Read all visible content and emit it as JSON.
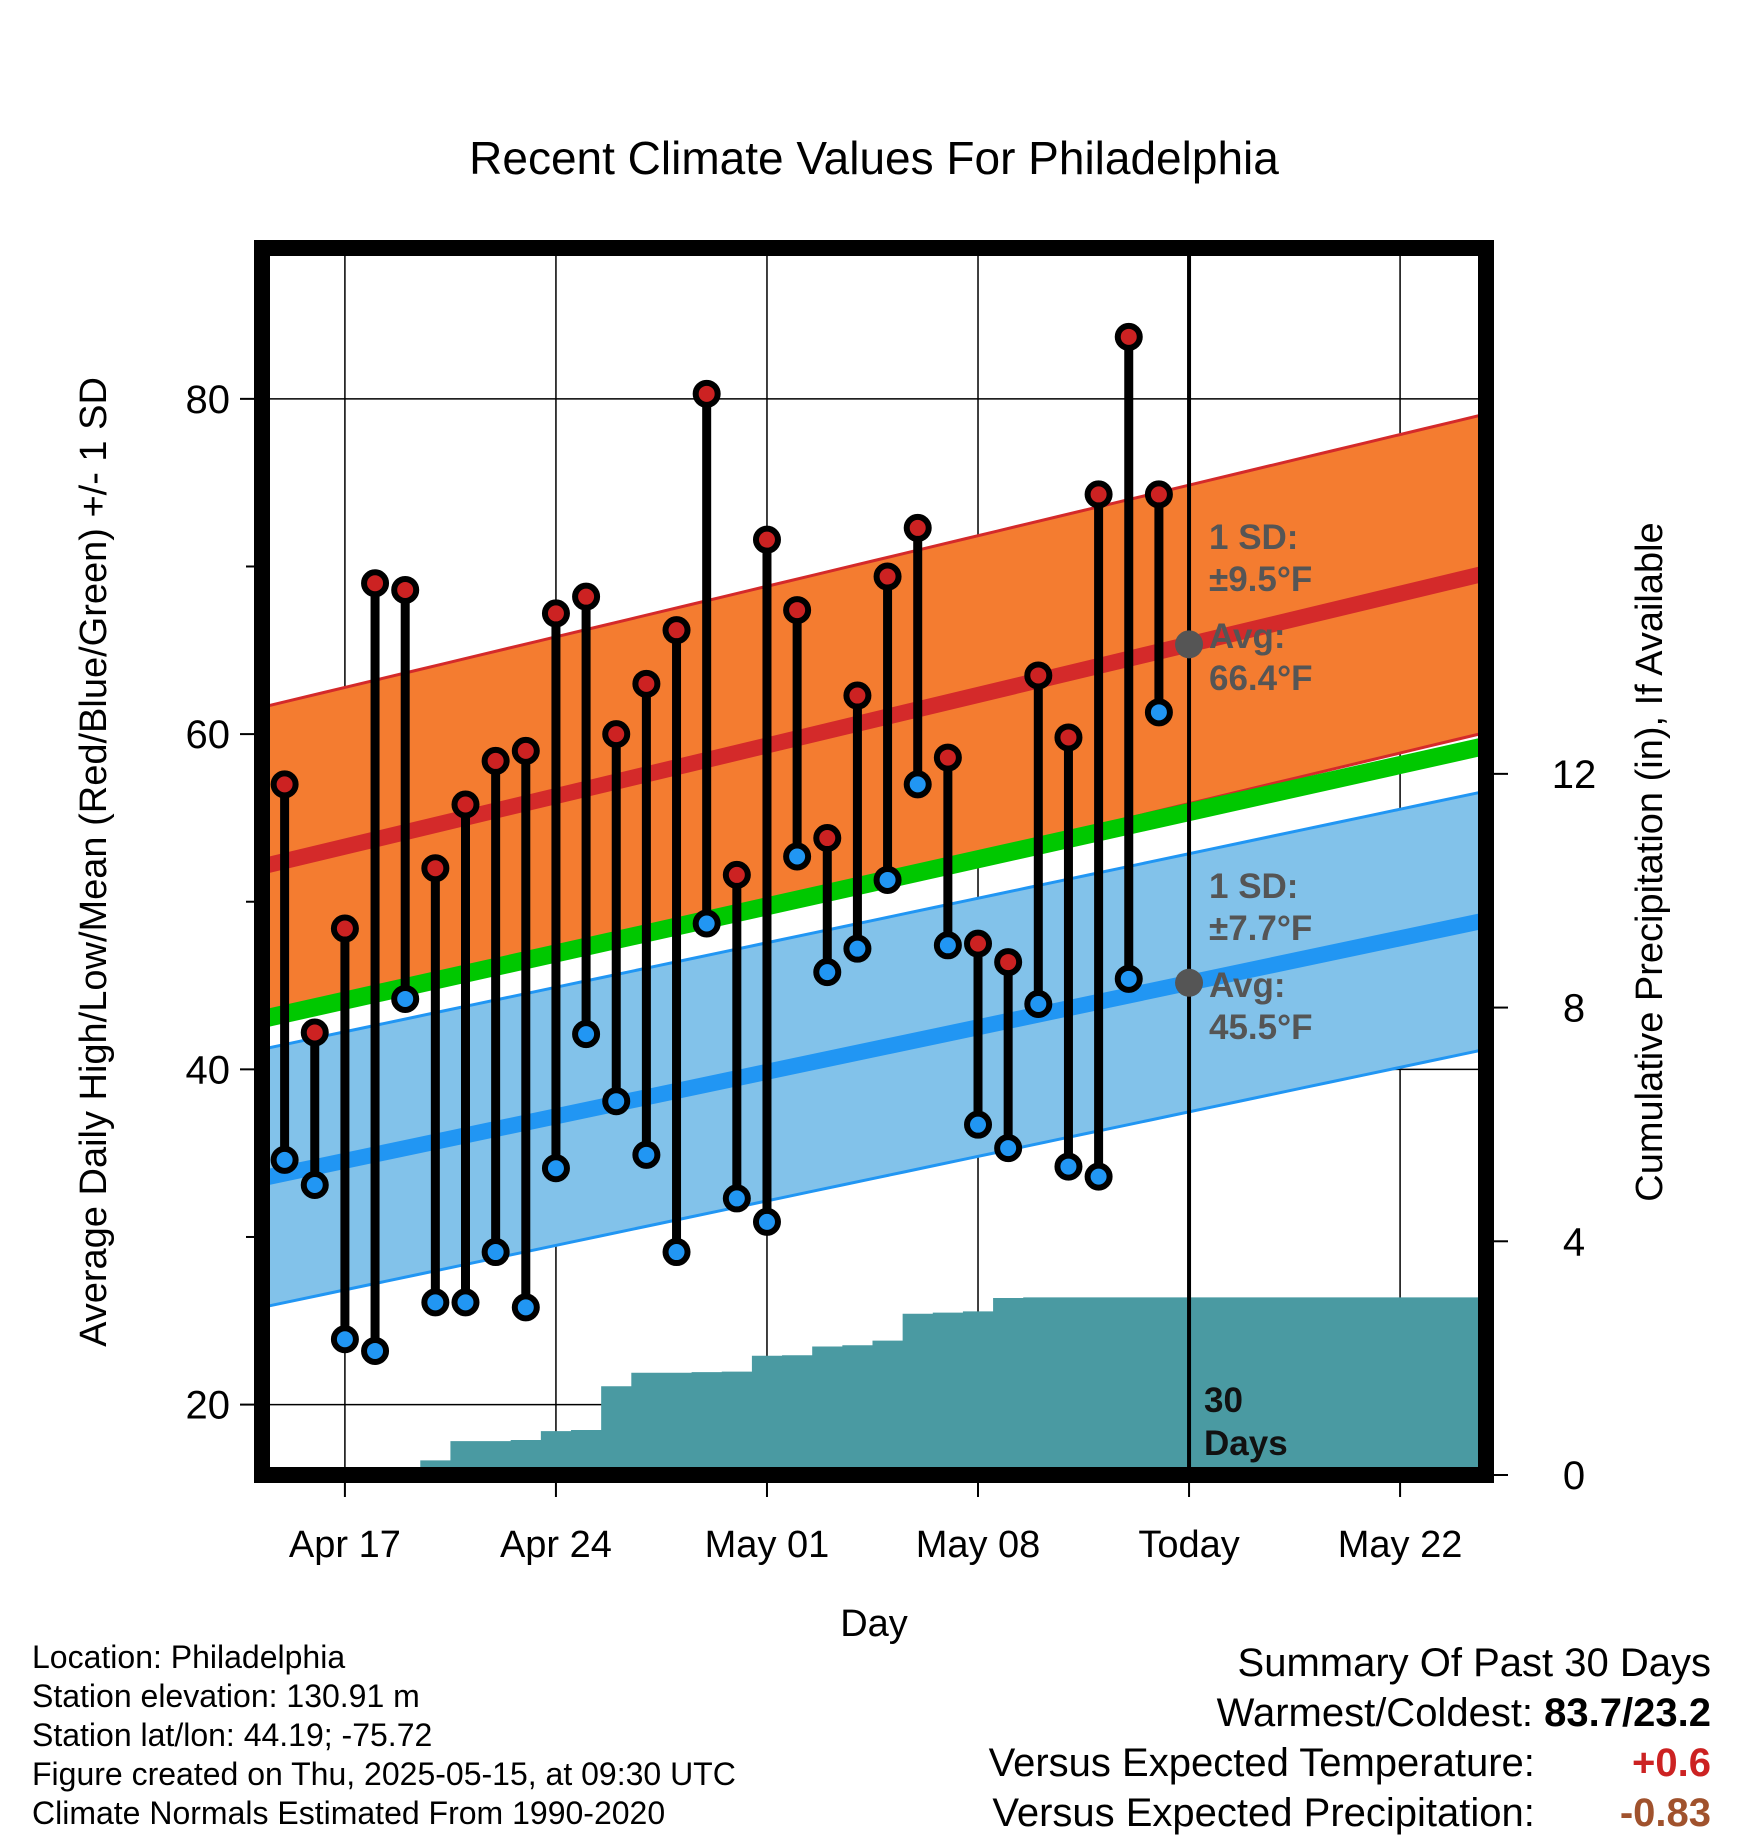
{
  "chart_data": {
    "type": "line",
    "title": "Recent Climate Values For Philadelphia",
    "xlabel": "Day",
    "ylabel": "Average Daily High/Low/Mean (Red/Blue/Green) +/- 1 SD",
    "y2label": "Cumulative Precipitation (in), If Available",
    "x_tick_labels": [
      "Apr 17",
      "Apr 24",
      "May 01",
      "May 08",
      "Today",
      "May 22"
    ],
    "y_ticks": [
      "20",
      "40",
      "60",
      "80"
    ],
    "y2_ticks": [
      "0",
      "4",
      "8",
      "12"
    ],
    "ylim": [
      15.8,
      89
    ],
    "y2lim": [
      0,
      21
    ],
    "xlim_days_from_apr17": [
      -2.75,
      37.85
    ],
    "today_days_from_apr17": 28,
    "grid": true,
    "days": [
      "Apr 14",
      "Apr 15",
      "Apr 16",
      "Apr 17",
      "Apr 18",
      "Apr 19",
      "Apr 20",
      "Apr 21",
      "Apr 22",
      "Apr 23",
      "Apr 24",
      "Apr 25",
      "Apr 26",
      "Apr 27",
      "Apr 28",
      "Apr 29",
      "Apr 30",
      "May 01",
      "May 02",
      "May 03",
      "May 04",
      "May 05",
      "May 06",
      "May 07",
      "May 08",
      "May 09",
      "May 10",
      "May 11",
      "May 12",
      "May 13",
      "May 14",
      "May 15",
      "May 16",
      "May 17",
      "May 18",
      "May 19",
      "May 20",
      "May 21",
      "May 22",
      "May 23",
      "May 24",
      "May 25"
    ],
    "series": [
      {
        "name": "High",
        "color": "#cc2222",
        "values": [
          null,
          57,
          42.2,
          48.4,
          69,
          68.6,
          52,
          55.8,
          58.4,
          59,
          67.2,
          68.2,
          60,
          63,
          66.2,
          80.3,
          51.6,
          71.6,
          67.4,
          53.8,
          62.3,
          69.4,
          72.3,
          58.6,
          47.5,
          46.4,
          63.5,
          59.8,
          74.3,
          83.7,
          74.3,
          null,
          null,
          null,
          null,
          null,
          null,
          null,
          null,
          null,
          null,
          null
        ]
      },
      {
        "name": "Low",
        "color": "#2196f3",
        "values": [
          null,
          34.6,
          33.1,
          23.9,
          23.2,
          44.2,
          26.1,
          26.1,
          29.1,
          25.8,
          34.1,
          42.1,
          38.1,
          34.9,
          29.1,
          48.7,
          32.3,
          30.9,
          52.7,
          45.8,
          47.2,
          51.3,
          57,
          47.4,
          36.7,
          35.3,
          43.9,
          34.2,
          33.6,
          45.4,
          61.3,
          null,
          null,
          null,
          null,
          null,
          null,
          null,
          null,
          null,
          null,
          null
        ]
      }
    ],
    "normals": {
      "high_avg_ends": [
        52.1,
        69.6
      ],
      "high_sd": 9.5,
      "low_avg_ends": [
        33.5,
        48.9
      ],
      "low_sd": 7.7,
      "mean_ends": [
        43,
        59.3
      ]
    },
    "precip_cumulative": [
      0,
      0,
      0,
      0,
      0,
      0.12,
      0.25,
      0.58,
      0.58,
      0.6,
      0.75,
      0.77,
      1.52,
      1.75,
      1.75,
      1.76,
      1.77,
      2.04,
      2.05,
      2.2,
      2.22,
      2.3,
      2.76,
      2.78,
      2.8,
      3.03,
      3.04,
      3.04,
      3.04,
      3.04,
      3.04,
      3.04,
      3.04,
      3.04,
      3.04,
      3.04,
      3.04,
      3.04,
      3.04,
      3.04,
      3.04,
      3.04
    ],
    "annotations": {
      "high_sd_label": "1 SD:",
      "high_sd_value": "±9.5°F",
      "high_avg_label": "Avg:",
      "high_avg_value": "66.4°F",
      "low_sd_label": "1 SD:",
      "low_sd_value": "±7.7°F",
      "low_avg_label": "Avg:",
      "low_avg_value": "45.5°F",
      "days_count": "30",
      "days_word": "Days"
    },
    "colors": {
      "high_band": "#f47c30",
      "high_line": "#d42a2a",
      "low_band": "#82c2ea",
      "low_line": "#2196f3",
      "mean_line": "#00c800",
      "precip": "#4a9aa2",
      "annotation_text": "#555555"
    }
  },
  "footer_left": {
    "location": "Location: Philadelphia",
    "elevation": "Station elevation: 130.91 m",
    "latlon": "Station lat/lon: 44.19; -75.72",
    "created": "Figure created on Thu, 2025-05-15, at 09:30 UTC",
    "normals": "Climate Normals Estimated From 1990-2020"
  },
  "summary": {
    "heading": "Summary Of Past 30 Days",
    "warmest_label": "Warmest/Coldest:",
    "warmest_value": "83.7/23.2",
    "temp_label": "Versus Expected Temperature:",
    "temp_value": "+0.6",
    "temp_color": "#cc2222",
    "precip_label": "Versus Expected Precipitation:",
    "precip_value": "-0.83",
    "precip_color": "#a0522d"
  }
}
